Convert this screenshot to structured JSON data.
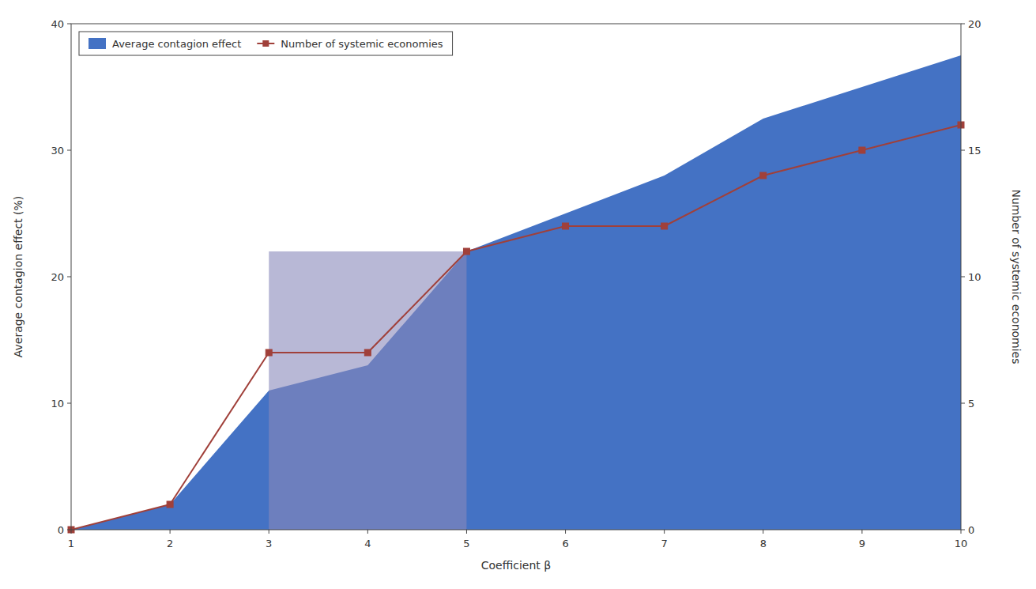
{
  "chart_data": {
    "type": "line",
    "xlabel": "Coefficient β",
    "ylabel": "Average contagion effect (%)",
    "y2label": "Number of systemic economies",
    "x": [
      1,
      2,
      3,
      4,
      5,
      6,
      7,
      8,
      9,
      10
    ],
    "series": [
      {
        "name": "Average contagion effect",
        "type": "area",
        "color": "#4472C4",
        "values": [
          0.0,
          2.0,
          11.0,
          13.0,
          22.0,
          25.0,
          28.0,
          32.5,
          35.0,
          37.5
        ]
      },
      {
        "name": "Number of systemic economies",
        "type": "line",
        "color": "#A0403A",
        "marker": "square",
        "axis": "y2",
        "values": [
          0,
          1,
          7,
          7,
          11,
          12,
          12,
          14,
          15,
          16
        ]
      }
    ],
    "highlight": {
      "x": [
        3,
        5
      ],
      "values": [
        22.0,
        22.0
      ],
      "color": "#8888BB"
    },
    "xlim": [
      1,
      10
    ],
    "xticks": [
      1,
      2,
      3,
      4,
      5,
      6,
      7,
      8,
      9,
      10
    ],
    "ylim": [
      0,
      40
    ],
    "yticks": [
      0,
      10,
      20,
      30,
      40
    ],
    "y2lim": [
      0,
      20
    ],
    "y2ticks": [
      0,
      5,
      10,
      15,
      20
    ],
    "grid": false,
    "legend": "upper left"
  }
}
